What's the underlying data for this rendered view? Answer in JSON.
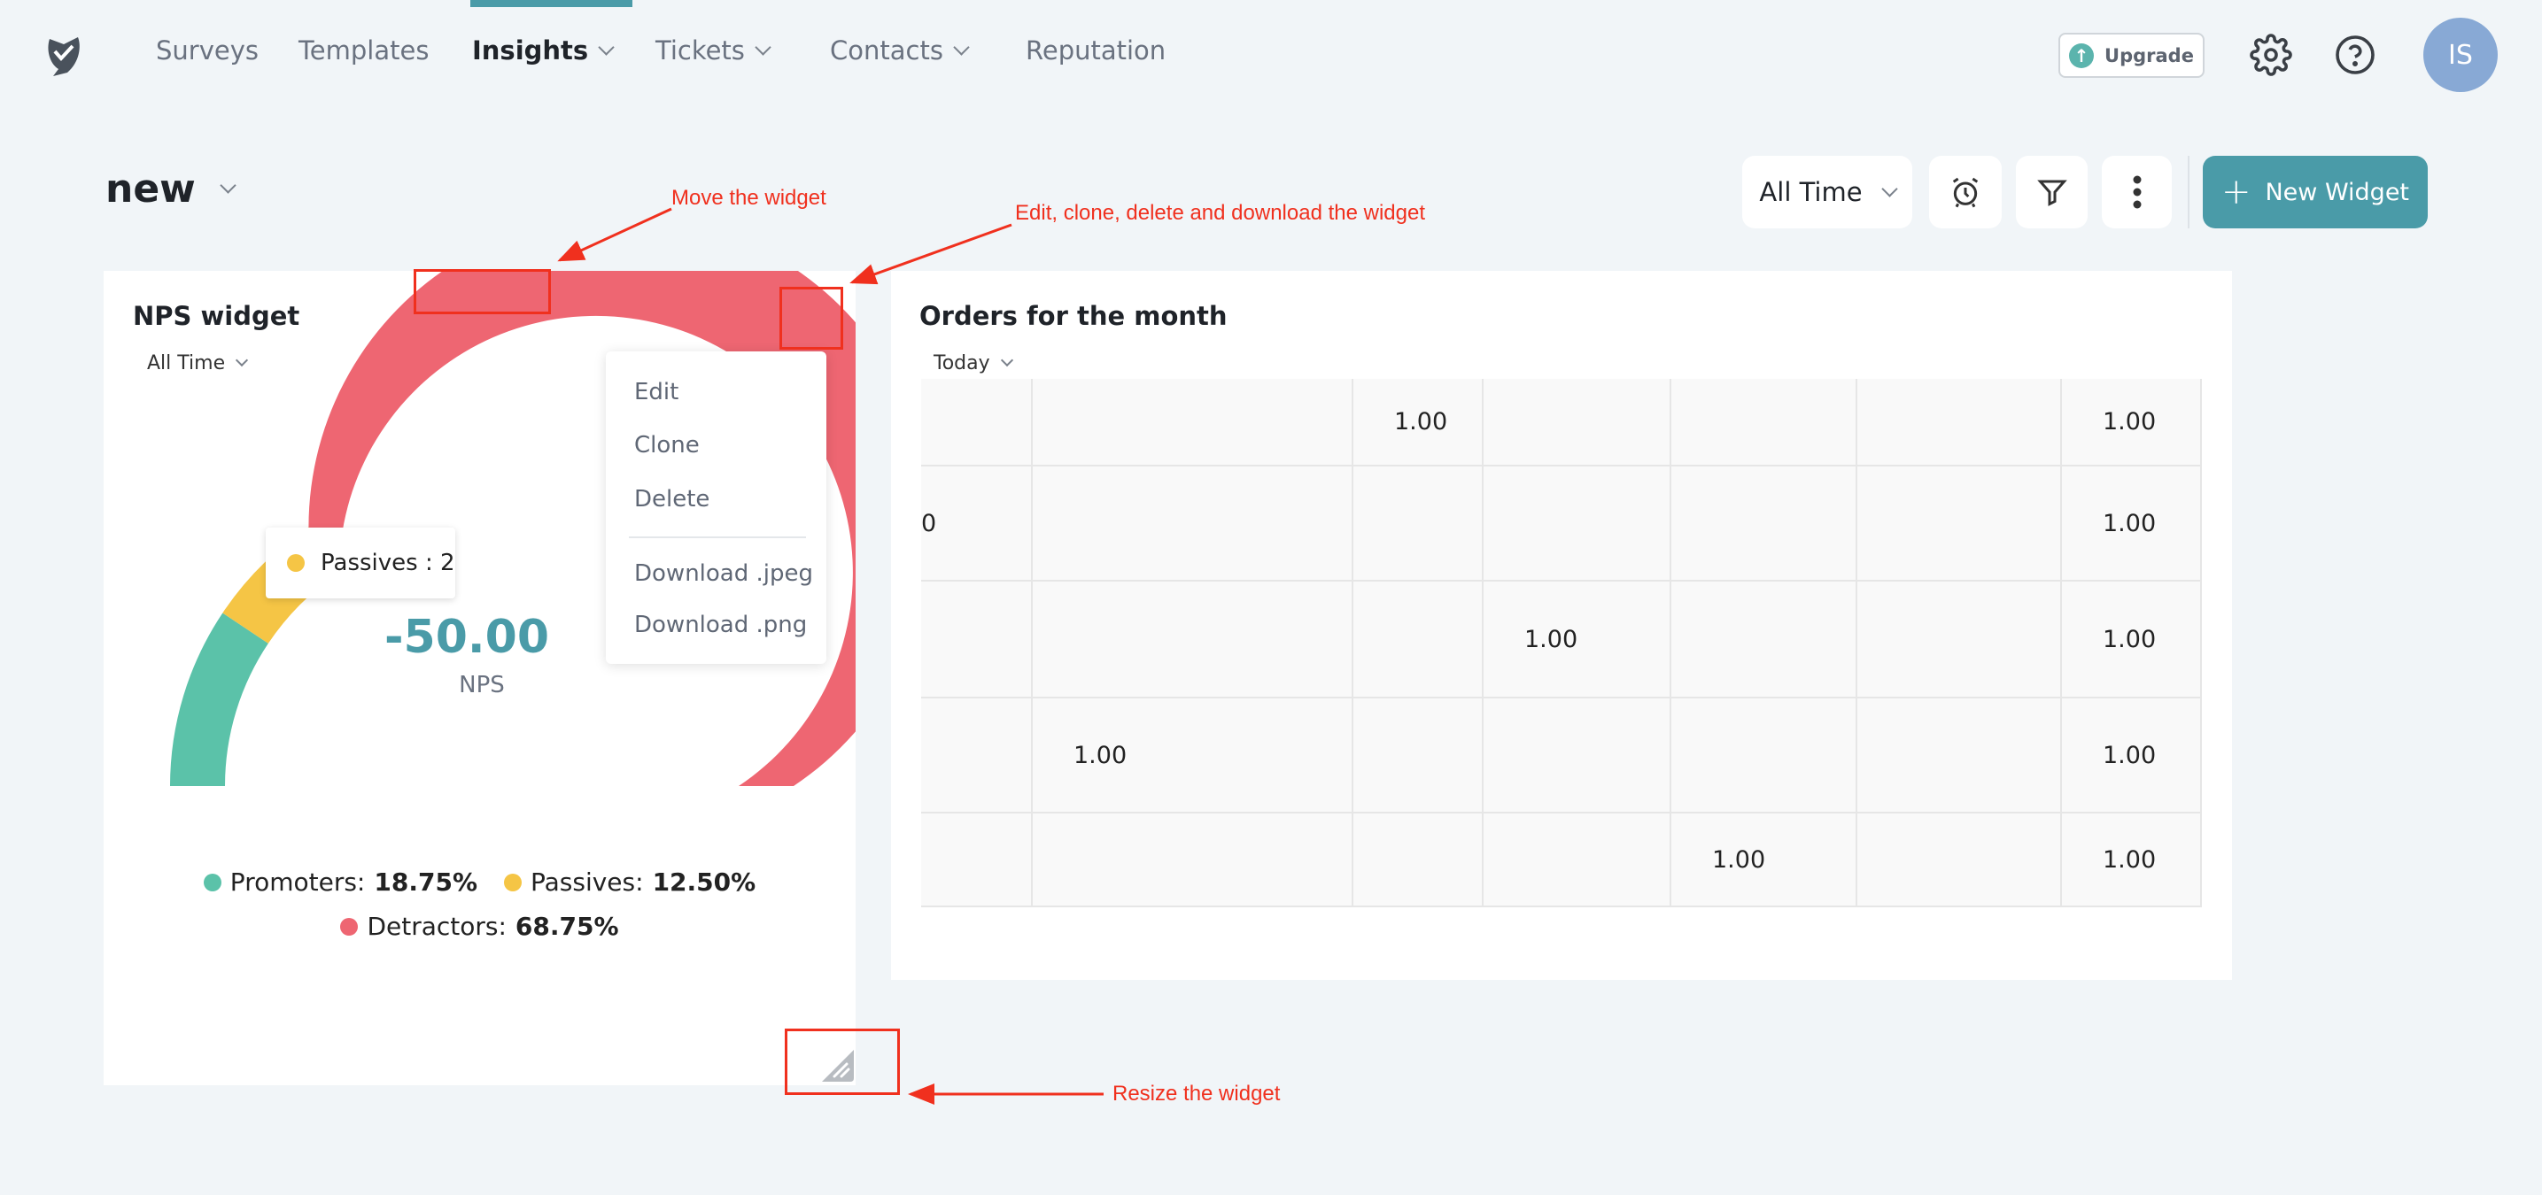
{
  "nav": {
    "items": [
      {
        "label": "Surveys",
        "dropdown": false,
        "active": false
      },
      {
        "label": "Templates",
        "dropdown": false,
        "active": false
      },
      {
        "label": "Insights",
        "dropdown": true,
        "active": true
      },
      {
        "label": "Tickets",
        "dropdown": true,
        "active": false
      },
      {
        "label": "Contacts",
        "dropdown": true,
        "active": false
      },
      {
        "label": "Reputation",
        "dropdown": false,
        "active": false
      }
    ],
    "upgrade_label": "Upgrade",
    "avatar_initials": "IS",
    "accent_color": "#4a9ba8"
  },
  "dashboard": {
    "title": "new",
    "time_filter": "All Time",
    "new_widget_label": "New Widget"
  },
  "nps_widget": {
    "title": "NPS widget",
    "time_filter": "All Time",
    "nps_value": "-50.00",
    "nps_label": "NPS",
    "tooltip": "Passives : 2",
    "menu": {
      "edit": "Edit",
      "clone": "Clone",
      "delete": "Delete",
      "download_jpeg": "Download .jpeg",
      "download_png": "Download .png"
    },
    "segments": [
      {
        "label": "Promoters:",
        "value": "18.75%",
        "pct": 18.75,
        "color": "#5bc2a9"
      },
      {
        "label": "Passives:",
        "value": "12.50%",
        "pct": 12.5,
        "color": "#f5c545"
      },
      {
        "label": "Detractors:",
        "value": "68.75%",
        "pct": 68.75,
        "color": "#ee6672"
      }
    ]
  },
  "orders_widget": {
    "title": "Orders for the month",
    "time_filter": "Today",
    "rows": [
      [
        "",
        "",
        "1.00",
        "",
        "",
        "",
        "1.00"
      ],
      [
        "0",
        "",
        "",
        "",
        "",
        "",
        "1.00"
      ],
      [
        "",
        "",
        "",
        "1.00",
        "",
        "",
        "1.00"
      ],
      [
        "",
        "1.00",
        "",
        "",
        "",
        "",
        "1.00"
      ],
      [
        "",
        "",
        "",
        "",
        "1.00",
        "",
        "1.00"
      ]
    ]
  },
  "annotations": {
    "move": "Move the widget",
    "menu": "Edit, clone, delete and download the widget",
    "resize": "Resize the widget"
  }
}
